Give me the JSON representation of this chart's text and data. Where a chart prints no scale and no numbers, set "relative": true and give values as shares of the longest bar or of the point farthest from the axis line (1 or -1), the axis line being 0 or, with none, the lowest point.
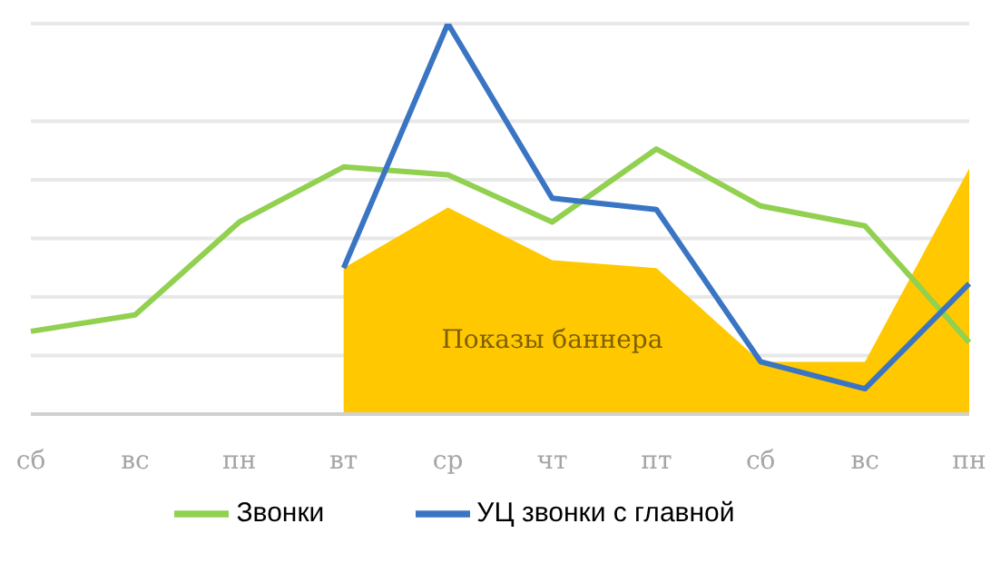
{
  "chart_data": {
    "type": "line",
    "relative": true,
    "categories": [
      "сб",
      "вс",
      "пн",
      "вт",
      "ср",
      "чт",
      "пт",
      "сб",
      "вс",
      "пн"
    ],
    "series": [
      {
        "name": "Показы баннера",
        "type": "area",
        "color": "#ffc800",
        "values": [
          null,
          null,
          null,
          0.374,
          0.529,
          0.394,
          0.374,
          0.134,
          0.134,
          0.629
        ]
      },
      {
        "name": "Звонки",
        "color": "#92d050",
        "values": [
          0.212,
          0.254,
          0.492,
          0.633,
          0.613,
          0.492,
          0.679,
          0.533,
          0.482,
          0.184
        ]
      },
      {
        "name": "УЦ звонки с главной",
        "color": "#3a75c4",
        "values": [
          null,
          null,
          null,
          0.374,
          1,
          0.553,
          0.524,
          0.134,
          0.065,
          0.334
        ]
      }
    ],
    "grid": "y",
    "legend": "bottom",
    "marker": "none",
    "line_style": "solid"
  }
}
